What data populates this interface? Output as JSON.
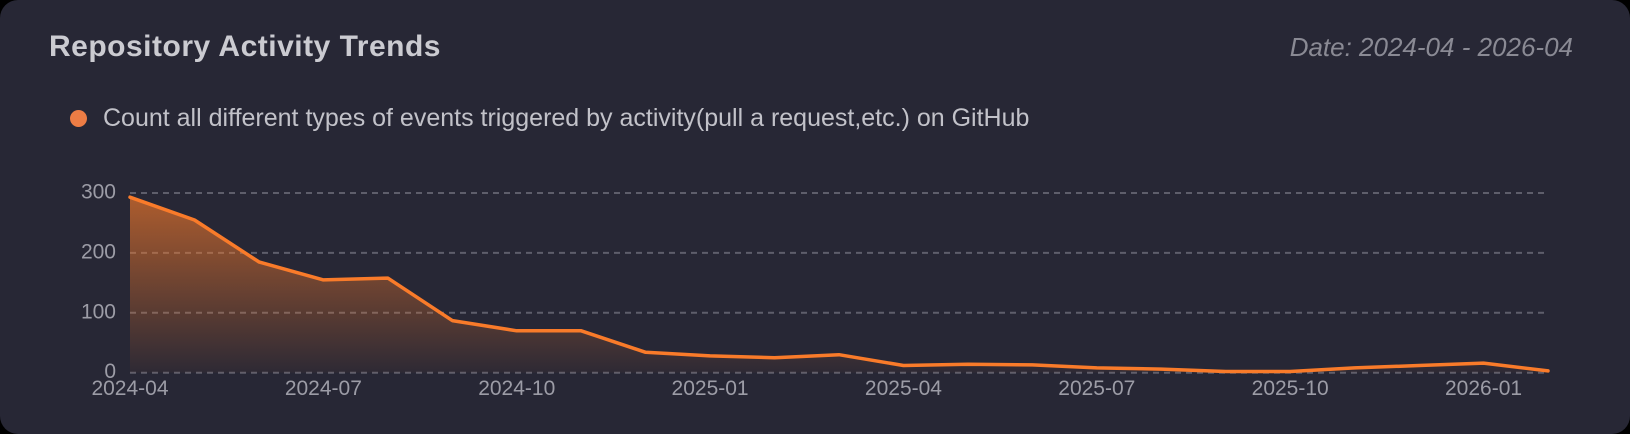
{
  "header": {
    "title": "Repository Activity Trends",
    "date_range": "Date: 2024-04 - 2026-04"
  },
  "legend": {
    "label": "Count all different types of events triggered by activity(pull a request,etc.) on GitHub",
    "marker_color": "#ed7d45"
  },
  "colors": {
    "card_background": "#272735",
    "line": "#f97b2a",
    "area_top": "rgba(249,123,42,0.65)",
    "area_bottom": "rgba(249,123,42,0.03)",
    "grid": "#5e5e6b",
    "axis_label": "#9c9ca6"
  },
  "chart_data": {
    "type": "area",
    "title": "Repository Activity Trends",
    "xlabel": "",
    "ylabel": "",
    "x": [
      "2024-04",
      "2024-05",
      "2024-06",
      "2024-07",
      "2024-08",
      "2024-09",
      "2024-10",
      "2024-11",
      "2024-12",
      "2025-01",
      "2025-02",
      "2025-03",
      "2025-04",
      "2025-05",
      "2025-06",
      "2025-07",
      "2025-08",
      "2025-09",
      "2025-10",
      "2025-11",
      "2025-12",
      "2026-01",
      "2026-02"
    ],
    "series": [
      {
        "name": "Count all different types of events triggered by activity(pull a request,etc.) on GitHub",
        "values": [
          293,
          255,
          185,
          155,
          158,
          87,
          70,
          70,
          34,
          28,
          25,
          30,
          12,
          14,
          13,
          8,
          6,
          2,
          2,
          8,
          12,
          16,
          3
        ]
      }
    ],
    "x_tick_labels": [
      "2024-04",
      "2024-07",
      "2024-10",
      "2025-01",
      "2025-04",
      "2025-07",
      "2025-10",
      "2026-01"
    ],
    "y_ticks": [
      0,
      100,
      200,
      300
    ],
    "ylim": [
      0,
      300
    ],
    "grid": true,
    "grid_style": "dashed",
    "legend_position": "top-left"
  }
}
